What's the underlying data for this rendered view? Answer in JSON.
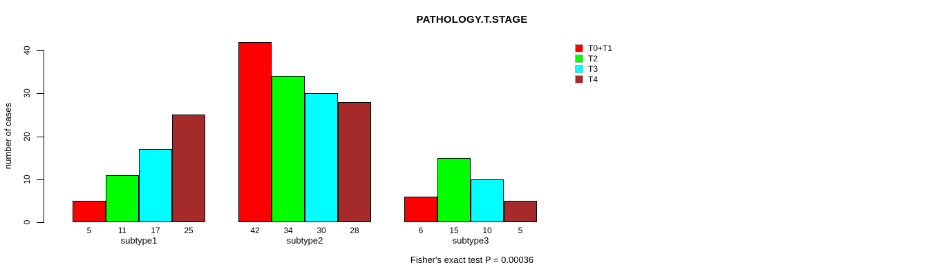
{
  "chart_data": {
    "type": "bar",
    "title": "PATHOLOGY.T.STAGE",
    "xlabel": "",
    "ylabel": "number of cases",
    "categories": [
      "subtype1",
      "subtype2",
      "subtype3"
    ],
    "series": [
      {
        "name": "T0+T1",
        "color": "#FF0000",
        "values": [
          5,
          42,
          6
        ]
      },
      {
        "name": "T2",
        "color": "#00FF00",
        "values": [
          11,
          34,
          15
        ]
      },
      {
        "name": "T3",
        "color": "#00FFFF",
        "values": [
          17,
          30,
          10
        ]
      },
      {
        "name": "T4",
        "color": "#A52A2A",
        "values": [
          25,
          28,
          5
        ]
      }
    ],
    "bar_value_labels_shown": true,
    "annotation": "Fisher's exact test P = 0.00036",
    "ylim": [
      0,
      40
    ],
    "yticks": [
      0,
      10,
      20,
      30,
      40
    ],
    "grid": false,
    "legend_position": "top-right",
    "background": "#FFFFFF",
    "bar_border_color": "#000000"
  }
}
